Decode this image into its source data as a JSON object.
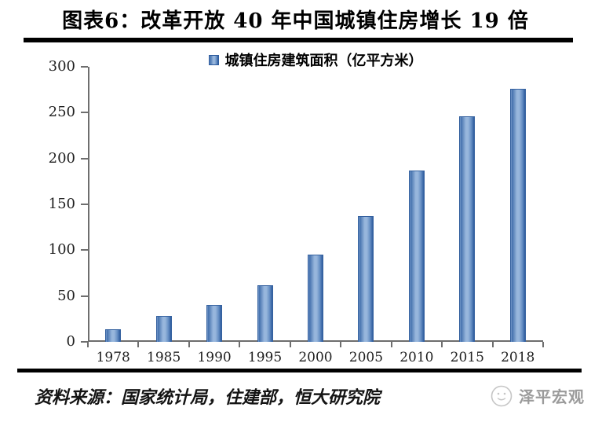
{
  "title": "图表6：改革开放 40 年中国城镇住房增长 19 倍",
  "footer": {
    "source": "资料来源：国家统计局，住建部，恒大研究院",
    "watermark_label": "泽平宏观",
    "watermark_logo": "sketch-face-logo-icon"
  },
  "colors": {
    "bar_fill_light": "#97b6dc",
    "bar_fill_dark": "#2e5c9e",
    "bar_outline": "#35619f",
    "axis_gray": "#6e6e6e",
    "rule_black": "#000000",
    "watermark_gray": "#9b9b9b"
  },
  "chart_data": {
    "type": "bar",
    "title": "",
    "legend": "城镇住房建筑面积（亿平方米）",
    "legend_position": "top-center",
    "categories": [
      "1978",
      "1985",
      "1990",
      "1995",
      "2000",
      "2005",
      "2010",
      "2015",
      "2018"
    ],
    "values": [
      14,
      28,
      40,
      62,
      95,
      137,
      187,
      246,
      276
    ],
    "xlabel": "",
    "ylabel": "",
    "ylim": [
      0,
      300
    ],
    "yticks": [
      0,
      50,
      100,
      150,
      200,
      250,
      300
    ],
    "grid": false
  }
}
